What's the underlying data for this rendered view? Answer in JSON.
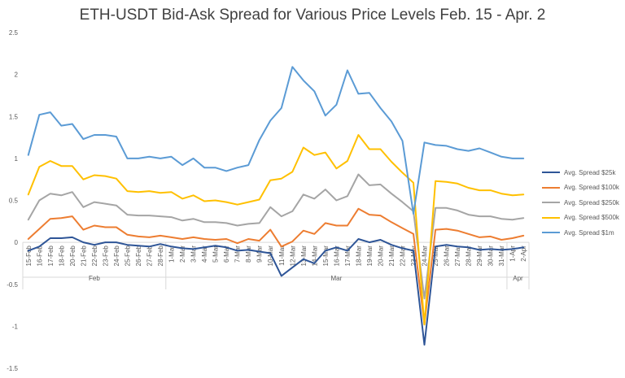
{
  "chart_data": {
    "type": "line",
    "title": "ETH-USDT Bid-Ask Spread for Various Price Levels Feb. 15 - Apr. 2",
    "xlabel": "",
    "ylabel": "",
    "ylim": [
      -1.5,
      2.5
    ],
    "yticks": [
      "2.5",
      "2",
      "1.5",
      "1",
      "0.5",
      "0",
      "-0.5",
      "-1",
      "-1.5"
    ],
    "grid": false,
    "legend_position": "right",
    "categories": [
      "15-Feb",
      "16-Feb",
      "17-Feb",
      "18-Feb",
      "20-Feb",
      "21-Feb",
      "22-Feb",
      "23-Feb",
      "24-Feb",
      "25-Feb",
      "26-Feb",
      "27-Feb",
      "28-Feb",
      "1-Mar",
      "2-Mar",
      "3-Mar",
      "4-Mar",
      "5-Mar",
      "6-Mar",
      "7-Mar",
      "8-Mar",
      "9-Mar",
      "10-Mar",
      "11-Mar",
      "12-Mar",
      "13-Mar",
      "14-Mar",
      "15-Mar",
      "16-Mar",
      "17-Mar",
      "18-Mar",
      "19-Mar",
      "20-Mar",
      "21-Mar",
      "22-Mar",
      "23-Mar",
      "24-Mar",
      "25-Mar",
      "26-Mar",
      "27-Mar",
      "28-Mar",
      "29-Mar",
      "30-Mar",
      "31-Mar",
      "1-Apr",
      "2-Apr"
    ],
    "months": [
      {
        "label": "Feb",
        "start": 0,
        "end": 12
      },
      {
        "label": "Mar",
        "start": 13,
        "end": 43
      },
      {
        "label": "Apr",
        "start": 44,
        "end": 45
      }
    ],
    "series": [
      {
        "name": "Avg. Spread $25k",
        "color": "#2e5597",
        "values": [
          -0.1,
          -0.05,
          0.05,
          0.05,
          0.06,
          0.0,
          -0.03,
          0.0,
          0.0,
          -0.03,
          -0.04,
          -0.05,
          -0.02,
          -0.05,
          -0.07,
          -0.08,
          -0.06,
          -0.04,
          -0.06,
          -0.1,
          -0.09,
          -0.11,
          -0.13,
          -0.4,
          -0.3,
          -0.2,
          -0.25,
          -0.1,
          -0.06,
          -0.1,
          0.04,
          0.0,
          0.03,
          -0.03,
          -0.07,
          -0.1,
          -1.22,
          -0.05,
          -0.03,
          -0.05,
          -0.06,
          -0.09,
          -0.08,
          -0.09,
          -0.08,
          -0.06
        ]
      },
      {
        "name": "Avg. Spread $100k",
        "color": "#ed7d31",
        "values": [
          0.04,
          0.16,
          0.28,
          0.29,
          0.31,
          0.15,
          0.2,
          0.18,
          0.18,
          0.09,
          0.07,
          0.06,
          0.08,
          0.06,
          0.04,
          0.06,
          0.04,
          0.03,
          0.04,
          -0.01,
          0.04,
          0.02,
          0.15,
          -0.05,
          0.01,
          0.14,
          0.1,
          0.23,
          0.2,
          0.2,
          0.4,
          0.33,
          0.32,
          0.24,
          0.17,
          0.1,
          -0.98,
          0.15,
          0.16,
          0.14,
          0.1,
          0.06,
          0.07,
          0.03,
          0.05,
          0.08
        ]
      },
      {
        "name": "Avg. Spread $250k",
        "color": "#a5a5a5",
        "values": [
          0.27,
          0.5,
          0.58,
          0.56,
          0.6,
          0.42,
          0.48,
          0.46,
          0.44,
          0.33,
          0.32,
          0.32,
          0.31,
          0.3,
          0.26,
          0.28,
          0.24,
          0.24,
          0.23,
          0.2,
          0.22,
          0.23,
          0.42,
          0.31,
          0.37,
          0.57,
          0.52,
          0.63,
          0.5,
          0.55,
          0.81,
          0.68,
          0.69,
          0.58,
          0.48,
          0.37,
          -0.67,
          0.41,
          0.41,
          0.38,
          0.33,
          0.31,
          0.31,
          0.28,
          0.27,
          0.29
        ]
      },
      {
        "name": "Avg. Spread $500k",
        "color": "#ffc000",
        "values": [
          0.57,
          0.9,
          0.97,
          0.91,
          0.91,
          0.75,
          0.8,
          0.79,
          0.76,
          0.61,
          0.6,
          0.61,
          0.59,
          0.6,
          0.52,
          0.56,
          0.49,
          0.5,
          0.48,
          0.45,
          0.48,
          0.51,
          0.74,
          0.76,
          0.84,
          1.13,
          1.04,
          1.07,
          0.88,
          0.97,
          1.28,
          1.11,
          1.11,
          0.96,
          0.83,
          0.71,
          -0.98,
          0.73,
          0.72,
          0.7,
          0.65,
          0.62,
          0.62,
          0.58,
          0.56,
          0.57
        ]
      },
      {
        "name": "Avg. Spread $1m",
        "color": "#5b9bd5",
        "values": [
          1.04,
          1.52,
          1.55,
          1.39,
          1.41,
          1.23,
          1.28,
          1.28,
          1.26,
          1.0,
          1.0,
          1.02,
          1.0,
          1.02,
          0.92,
          1.0,
          0.89,
          0.89,
          0.85,
          0.89,
          0.92,
          1.22,
          1.45,
          1.6,
          2.09,
          1.93,
          1.8,
          1.51,
          1.64,
          2.05,
          1.77,
          1.78,
          1.6,
          1.44,
          1.21,
          0.34,
          1.19,
          1.16,
          1.15,
          1.11,
          1.09,
          1.12,
          1.07,
          1.02,
          1.0,
          1.0
        ]
      }
    ]
  }
}
